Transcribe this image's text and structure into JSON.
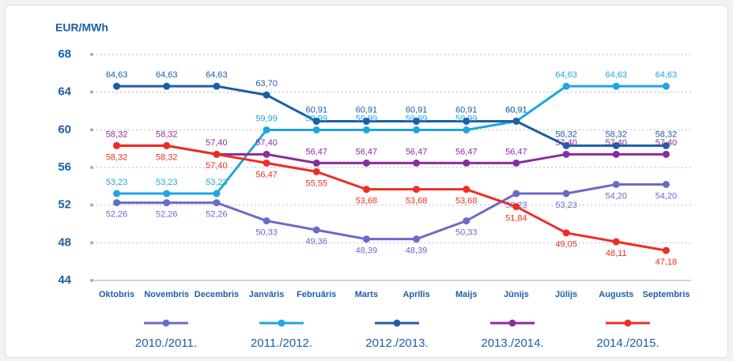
{
  "chart_data": {
    "type": "line",
    "y_label": "EUR/MWh",
    "categories": [
      "Oktobris",
      "Novembris",
      "Decembris",
      "Janvāris",
      "Februāris",
      "Marts",
      "Aprīlis",
      "Maijs",
      "Jūnijs",
      "Jūlijs",
      "Augusts",
      "Septembris"
    ],
    "ylim": [
      44,
      68
    ],
    "yticks": [
      44,
      48,
      52,
      56,
      60,
      64,
      68
    ],
    "grid": true,
    "series": [
      {
        "name": "2010./2011.",
        "color": "#6a6ac8",
        "values": [
          52.26,
          52.26,
          52.26,
          50.33,
          49.36,
          48.39,
          48.39,
          50.33,
          53.23,
          53.23,
          54.2,
          54.2
        ],
        "value_labels": [
          "52,26",
          "52,26",
          "52,26",
          "50,33",
          "49,36",
          "48,39",
          "48,39",
          "50,33",
          "53,23",
          "53,23",
          "54,20",
          "54,20"
        ]
      },
      {
        "name": "2011./2012.",
        "color": "#1ea6e0",
        "values": [
          53.23,
          53.23,
          53.23,
          59.99,
          59.99,
          59.99,
          59.99,
          59.99,
          60.91,
          64.63,
          64.63,
          64.63
        ],
        "value_labels": [
          "53,23",
          "53,23",
          "53,23",
          "59,99",
          "59,99",
          "59,99",
          "59,99",
          "59,99",
          "60,91",
          "64,63",
          "64,63",
          "64,63"
        ]
      },
      {
        "name": "2012./2013.",
        "color": "#1c5ea8",
        "values": [
          64.63,
          64.63,
          64.63,
          63.7,
          60.91,
          60.91,
          60.91,
          60.91,
          60.91,
          58.32,
          58.32,
          58.32
        ],
        "value_labels": [
          "64,63",
          "64,63",
          "64,63",
          "63,70",
          "60,91",
          "60,91",
          "60,91",
          "60,91",
          "60,91",
          "58,32",
          "58,32",
          "58,32"
        ]
      },
      {
        "name": "2013./2014.",
        "color": "#8a2c9e",
        "values": [
          58.32,
          58.32,
          57.4,
          57.4,
          56.47,
          56.47,
          56.47,
          56.47,
          56.47,
          57.4,
          57.4,
          57.4
        ],
        "value_labels": [
          "58,32",
          "58,32",
          "57,40",
          "57,40",
          "56,47",
          "56,47",
          "56,47",
          "56,47",
          "56,47",
          "57,40",
          "57,40",
          "57,40"
        ]
      },
      {
        "name": "2014./2015.",
        "color": "#ee2e24",
        "values": [
          58.32,
          58.32,
          57.4,
          56.47,
          55.55,
          53.68,
          53.68,
          53.68,
          51.84,
          49.05,
          48.11,
          47.18
        ],
        "value_labels": [
          "58,32",
          "58,32",
          "57,40",
          "56,47",
          "55,55",
          "53,68",
          "53,68",
          "53,68",
          "51,84",
          "49,05",
          "48,11",
          "47,18"
        ]
      }
    ]
  }
}
